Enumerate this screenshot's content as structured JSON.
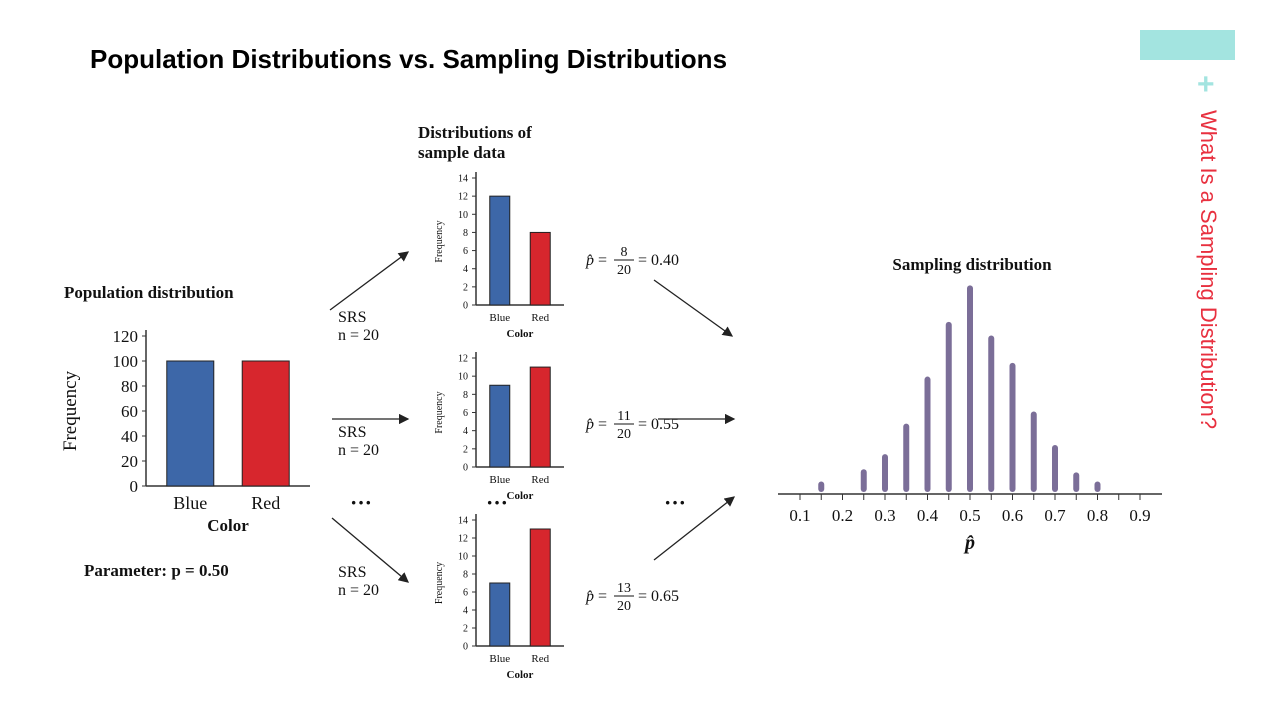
{
  "slide": {
    "title": "Population Distributions vs. Sampling Distributions",
    "side_title": "What Is a Sampling Distribution?",
    "plus": "+",
    "colors": {
      "accent": "#a3e4e0",
      "side_title": "#e8303f",
      "plus": "#a3e4e0"
    }
  },
  "flow": {
    "srs_label": "SRS",
    "n_label": "n = 20",
    "ellipsis": "···",
    "samples_heading_line1": "Distributions of",
    "samples_heading_line2": "sample data"
  },
  "chart_data": [
    {
      "type": "bar",
      "title": "Population distribution",
      "xlabel": "Color",
      "ylabel": "Frequency",
      "categories": [
        "Blue",
        "Red"
      ],
      "values": [
        100,
        100
      ],
      "ylim": [
        0,
        120
      ],
      "yticks": [
        0,
        20,
        40,
        60,
        80,
        100,
        120
      ],
      "colors": [
        "#3d67a8",
        "#d7262d"
      ],
      "annotation": {
        "prefix": "Parameter: ",
        "text": "p = 0.50"
      }
    },
    {
      "type": "bar",
      "title": "",
      "xlabel": "Color",
      "ylabel": "Frequency",
      "categories": [
        "Blue",
        "Red"
      ],
      "values": [
        12,
        8
      ],
      "ylim": [
        0,
        14
      ],
      "yticks": [
        0,
        2,
        4,
        6,
        8,
        10,
        12,
        14
      ],
      "colors": [
        "#3d67a8",
        "#d7262d"
      ],
      "annotation": {
        "num": "8",
        "den": "20",
        "result": "= 0.40"
      }
    },
    {
      "type": "bar",
      "title": "",
      "xlabel": "Color",
      "ylabel": "Frequency",
      "categories": [
        "Blue",
        "Red"
      ],
      "values": [
        9,
        11
      ],
      "ylim": [
        0,
        12
      ],
      "yticks": [
        0,
        2,
        4,
        6,
        8,
        10,
        12
      ],
      "colors": [
        "#3d67a8",
        "#d7262d"
      ],
      "annotation": {
        "num": "11",
        "den": "20",
        "result": "= 0.55"
      }
    },
    {
      "type": "bar",
      "title": "",
      "xlabel": "Color",
      "ylabel": "Frequency",
      "categories": [
        "Blue",
        "Red"
      ],
      "values": [
        7,
        13
      ],
      "ylim": [
        0,
        14
      ],
      "yticks": [
        0,
        2,
        4,
        6,
        8,
        10,
        12,
        14
      ],
      "colors": [
        "#3d67a8",
        "#d7262d"
      ],
      "annotation": {
        "num": "13",
        "den": "20",
        "result": "= 0.65"
      }
    },
    {
      "type": "bar",
      "title": "Sampling distribution",
      "xlabel": "p̂",
      "ylabel": "",
      "x": [
        0.1,
        0.15,
        0.2,
        0.25,
        0.3,
        0.35,
        0.4,
        0.45,
        0.5,
        0.55,
        0.6,
        0.65,
        0.7,
        0.75,
        0.8,
        0.85,
        0.9
      ],
      "values": [
        0,
        0.3,
        0,
        1.1,
        2.1,
        4.1,
        7.2,
        10.8,
        13.2,
        9.9,
        8.1,
        4.9,
        2.7,
        0.9,
        0.3,
        0,
        0
      ],
      "xticks": [
        "0.1",
        "0.2",
        "0.3",
        "0.4",
        "0.5",
        "0.6",
        "0.7",
        "0.8",
        "0.9"
      ],
      "color": "#7b6e98"
    }
  ]
}
